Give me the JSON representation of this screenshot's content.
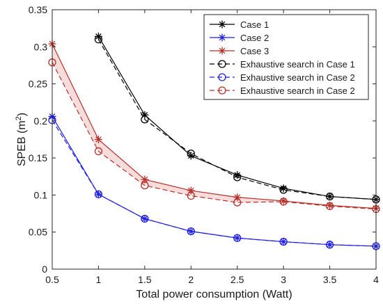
{
  "chart_data": {
    "type": "line",
    "xlabel": "Total power consumption (Watt)",
    "ylabel": "SPEB (m",
    "ylabel_sup": "2",
    "ylabel_suffix": ")",
    "xlim": [
      0.5,
      4
    ],
    "ylim": [
      0,
      0.35
    ],
    "x_ticks": [
      "0.5",
      "1",
      "1.5",
      "2",
      "2.5",
      "3",
      "3.5",
      "4"
    ],
    "y_ticks": [
      "0",
      "0.05",
      "0.1",
      "0.15",
      "0.2",
      "0.25",
      "0.3",
      "0.35"
    ],
    "grid": false,
    "legend_position": "top-right",
    "series": [
      {
        "name": "Case 1",
        "color": "#000000",
        "marker": "asterisk",
        "dash": "solid",
        "x": [
          1,
          1.5,
          2,
          2.5,
          3,
          3.5,
          4
        ],
        "values": [
          0.314,
          0.208,
          0.153,
          0.127,
          0.109,
          0.098,
          0.094
        ]
      },
      {
        "name": "Case 2",
        "color": "#1f1fe6",
        "marker": "asterisk",
        "dash": "solid",
        "x": [
          0.5,
          1,
          1.5,
          2,
          2.5,
          3,
          3.5,
          4
        ],
        "values": [
          0.206,
          0.101,
          0.068,
          0.051,
          0.042,
          0.037,
          0.033,
          0.031
        ]
      },
      {
        "name": "Case 3",
        "color": "#b5302a",
        "marker": "asterisk",
        "dash": "solid",
        "x": [
          0.5,
          1,
          1.5,
          2,
          2.5,
          3,
          3.5,
          4
        ],
        "values": [
          0.304,
          0.175,
          0.121,
          0.106,
          0.097,
          0.092,
          0.086,
          0.082
        ]
      },
      {
        "name": "Exhaustive search in Case 1",
        "color": "#000000",
        "marker": "circle",
        "dash": "dashed",
        "x": [
          1,
          1.5,
          2,
          2.5,
          3,
          3.5,
          4
        ],
        "values": [
          0.31,
          0.202,
          0.156,
          0.124,
          0.107,
          0.098,
          0.094
        ]
      },
      {
        "name": "Exhaustive search in Case 2",
        "color": "#1f1fe6",
        "marker": "circle",
        "dash": "dashed",
        "x": [
          0.5,
          1,
          1.5,
          2,
          2.5,
          3,
          3.5,
          4
        ],
        "values": [
          0.201,
          0.101,
          0.068,
          0.051,
          0.042,
          0.037,
          0.033,
          0.031
        ]
      },
      {
        "name": "Exhaustive search in Case 2",
        "color": "#b5302a",
        "marker": "circle",
        "dash": "dashed",
        "x": [
          0.5,
          1,
          1.5,
          2,
          2.5,
          3,
          3.5,
          4
        ],
        "values": [
          0.279,
          0.159,
          0.113,
          0.099,
          0.09,
          0.091,
          0.085,
          0.081
        ]
      }
    ],
    "band": {
      "between": [
        2,
        5
      ],
      "color": "#f2c4c4"
    }
  }
}
